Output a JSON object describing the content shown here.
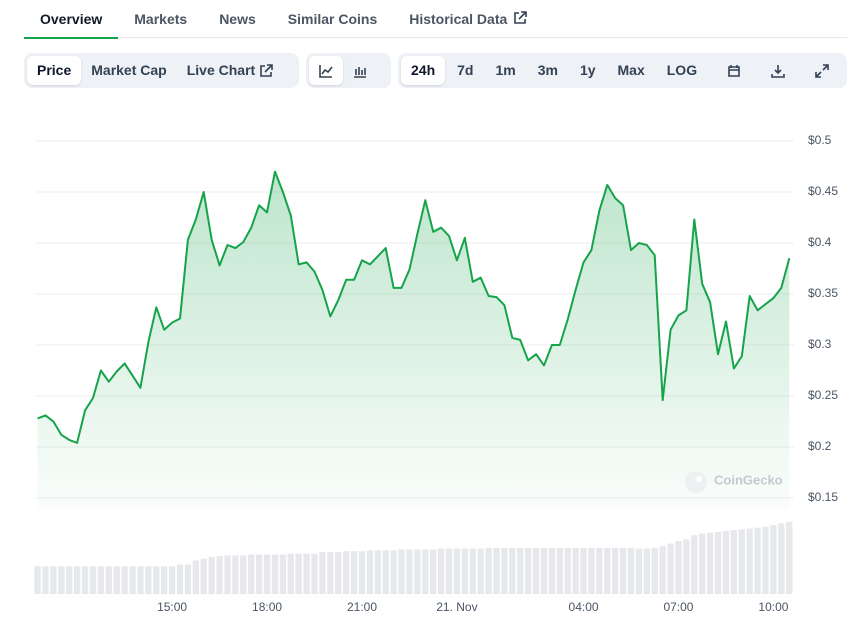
{
  "tabs": [
    "Overview",
    "Markets",
    "News",
    "Similar Coins",
    "Historical Data"
  ],
  "metric_buttons": [
    "Price",
    "Market Cap",
    "Live Chart"
  ],
  "range_buttons": [
    "24h",
    "7d",
    "1m",
    "3m",
    "1y",
    "Max",
    "LOG"
  ],
  "watermark": "CoinGecko",
  "chart_data": {
    "type": "line",
    "color": "#16a34a",
    "x": [
      10.75,
      11,
      11.25,
      11.5,
      11.75,
      12,
      12.25,
      12.5,
      12.75,
      13,
      13.25,
      13.5,
      13.75,
      14,
      14.25,
      14.5,
      14.75,
      15,
      15.25,
      15.5,
      15.75,
      16,
      16.25,
      16.5,
      16.75,
      17,
      17.25,
      17.5,
      17.75,
      18,
      18.25,
      18.5,
      18.75,
      19,
      19.25,
      19.5,
      19.75,
      20,
      20.25,
      20.5,
      20.75,
      21,
      21.25,
      21.5,
      21.75,
      22,
      22.25,
      22.5,
      22.75,
      23,
      23.25,
      23.5,
      23.75,
      24,
      24.25,
      24.5,
      24.75,
      25,
      25.25,
      25.5,
      25.75,
      26,
      26.25,
      26.5,
      26.75,
      27,
      27.25,
      27.5,
      27.75,
      28,
      28.25,
      28.5,
      28.75,
      29,
      29.25,
      29.5,
      29.75,
      30,
      30.25,
      30.5,
      30.75,
      31,
      31.25,
      31.5,
      31.75,
      32,
      32.25,
      32.5,
      32.75,
      33,
      33.25,
      33.5,
      33.75,
      34,
      34.25,
      34.5
    ],
    "values": [
      0.228,
      0.231,
      0.225,
      0.212,
      0.207,
      0.204,
      0.236,
      0.248,
      0.275,
      0.264,
      0.274,
      0.282,
      0.27,
      0.258,
      0.303,
      0.337,
      0.315,
      0.322,
      0.326,
      0.403,
      0.423,
      0.45,
      0.403,
      0.378,
      0.398,
      0.395,
      0.401,
      0.415,
      0.437,
      0.43,
      0.47,
      0.45,
      0.427,
      0.379,
      0.381,
      0.372,
      0.354,
      0.328,
      0.344,
      0.364,
      0.364,
      0.383,
      0.379,
      0.387,
      0.395,
      0.356,
      0.356,
      0.374,
      0.409,
      0.442,
      0.411,
      0.415,
      0.407,
      0.383,
      0.405,
      0.362,
      0.366,
      0.348,
      0.347,
      0.339,
      0.307,
      0.305,
      0.285,
      0.291,
      0.28,
      0.3,
      0.3,
      0.325,
      0.354,
      0.381,
      0.393,
      0.432,
      0.457,
      0.444,
      0.437,
      0.393,
      0.4,
      0.398,
      0.388,
      0.246,
      0.315,
      0.329,
      0.334,
      0.423,
      0.36,
      0.342,
      0.291,
      0.323,
      0.277,
      0.289,
      0.348,
      0.334,
      0.34,
      0.346,
      0.356,
      0.385
    ],
    "xlim": [
      10.7,
      34.65
    ],
    "xticks": [
      {
        "value": 15,
        "label": "15:00"
      },
      {
        "value": 18,
        "label": "18:00"
      },
      {
        "value": 21,
        "label": "21:00"
      },
      {
        "value": 24,
        "label": "21. Nov"
      },
      {
        "value": 28,
        "label": "04:00"
      },
      {
        "value": 31,
        "label": "07:00"
      },
      {
        "value": 34,
        "label": "10:00"
      }
    ],
    "ylim": [
      0.14,
      0.52
    ],
    "yticks": [
      {
        "value": 0.5,
        "label": "$0.5"
      },
      {
        "value": 0.45,
        "label": "$0.45"
      },
      {
        "value": 0.4,
        "label": "$0.4"
      },
      {
        "value": 0.35,
        "label": "$0.35"
      },
      {
        "value": 0.3,
        "label": "$0.3"
      },
      {
        "value": 0.25,
        "label": "$0.25"
      },
      {
        "value": 0.2,
        "label": "$0.2"
      },
      {
        "value": 0.15,
        "label": "$0.15"
      }
    ],
    "grid": true,
    "volume": {
      "color": "#e6e8eb",
      "ylim": [
        0,
        100
      ],
      "values": [
        33,
        33,
        33,
        33,
        33,
        33,
        33,
        33,
        33,
        33,
        33,
        33,
        33,
        33,
        33,
        33,
        33,
        33,
        35,
        35,
        40,
        42,
        44,
        45,
        46,
        46,
        46,
        47,
        47,
        47,
        47,
        47,
        48,
        48,
        48,
        48,
        50,
        50,
        50,
        51,
        51,
        51,
        52,
        52,
        52,
        52,
        53,
        53,
        53,
        53,
        53,
        54,
        54,
        54,
        54,
        54,
        54,
        55,
        55,
        55,
        55,
        55,
        55,
        55,
        55,
        55,
        55,
        55,
        55,
        55,
        55,
        55,
        55,
        55,
        55,
        55,
        54,
        54,
        55,
        57,
        60,
        63,
        65,
        70,
        72,
        73,
        74,
        75,
        76,
        77,
        78,
        79,
        80,
        82,
        84,
        86
      ]
    }
  }
}
